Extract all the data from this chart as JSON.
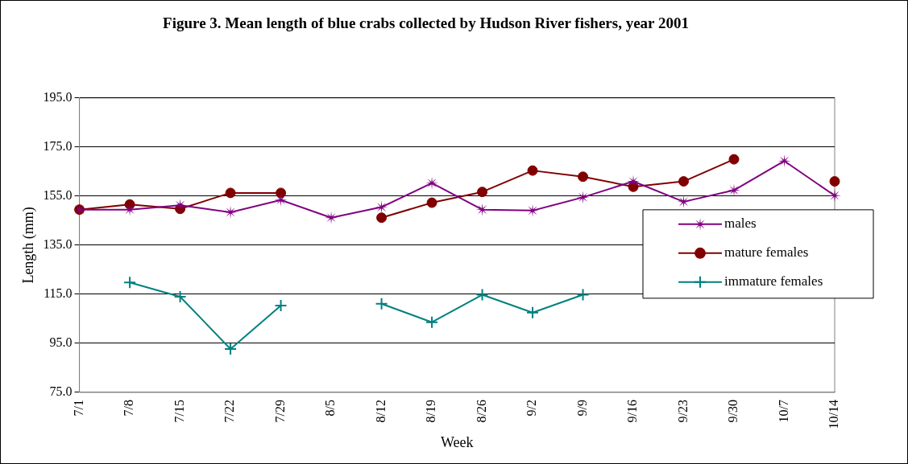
{
  "chart_data": {
    "type": "line",
    "title": "Figure 3. Mean length of blue crabs collected by Hudson River fishers, year 2001",
    "xlabel": "Week",
    "ylabel": "Length (mm)",
    "categories": [
      "7/1",
      "7/8",
      "7/15",
      "7/22",
      "7/29",
      "8/5",
      "8/12",
      "8/19",
      "8/26",
      "9/2",
      "9/9",
      "9/16",
      "9/23",
      "9/30",
      "10/7",
      "10/14"
    ],
    "series": [
      {
        "name": "males",
        "color": "#800080",
        "marker": "star",
        "values": [
          149.5,
          149.5,
          151.3,
          148.4,
          153.4,
          146.2,
          150.5,
          160.3,
          149.5,
          149.1,
          154.5,
          161,
          152.7,
          157.4,
          169.3,
          155.2
        ]
      },
      {
        "name": "mature females",
        "color": "#800000",
        "marker": "circle",
        "values": [
          149.5,
          151.6,
          149.8,
          156.3,
          156.3,
          null,
          146.2,
          152.3,
          156.7,
          165.4,
          162.9,
          158.8,
          161,
          170,
          null,
          161
        ]
      },
      {
        "name": "immature females",
        "color": "#008080",
        "marker": "cross",
        "values": [
          null,
          119.8,
          114,
          92.7,
          110.4,
          null,
          111.1,
          103.6,
          114.8,
          107.5,
          114.8,
          null,
          null,
          null,
          null,
          null
        ]
      }
    ],
    "ylim": [
      75,
      195
    ],
    "yticks": [
      {
        "value": 75,
        "label": "75.0"
      },
      {
        "value": 95,
        "label": "95.0"
      },
      {
        "value": 115,
        "label": "115.0"
      },
      {
        "value": 135,
        "label": "135.0"
      },
      {
        "value": 155,
        "label": "155.0"
      },
      {
        "value": 175,
        "label": "175.0"
      },
      {
        "value": 195,
        "label": "195.0"
      }
    ],
    "grid": "y",
    "legend": "right",
    "line_style": "solid"
  }
}
